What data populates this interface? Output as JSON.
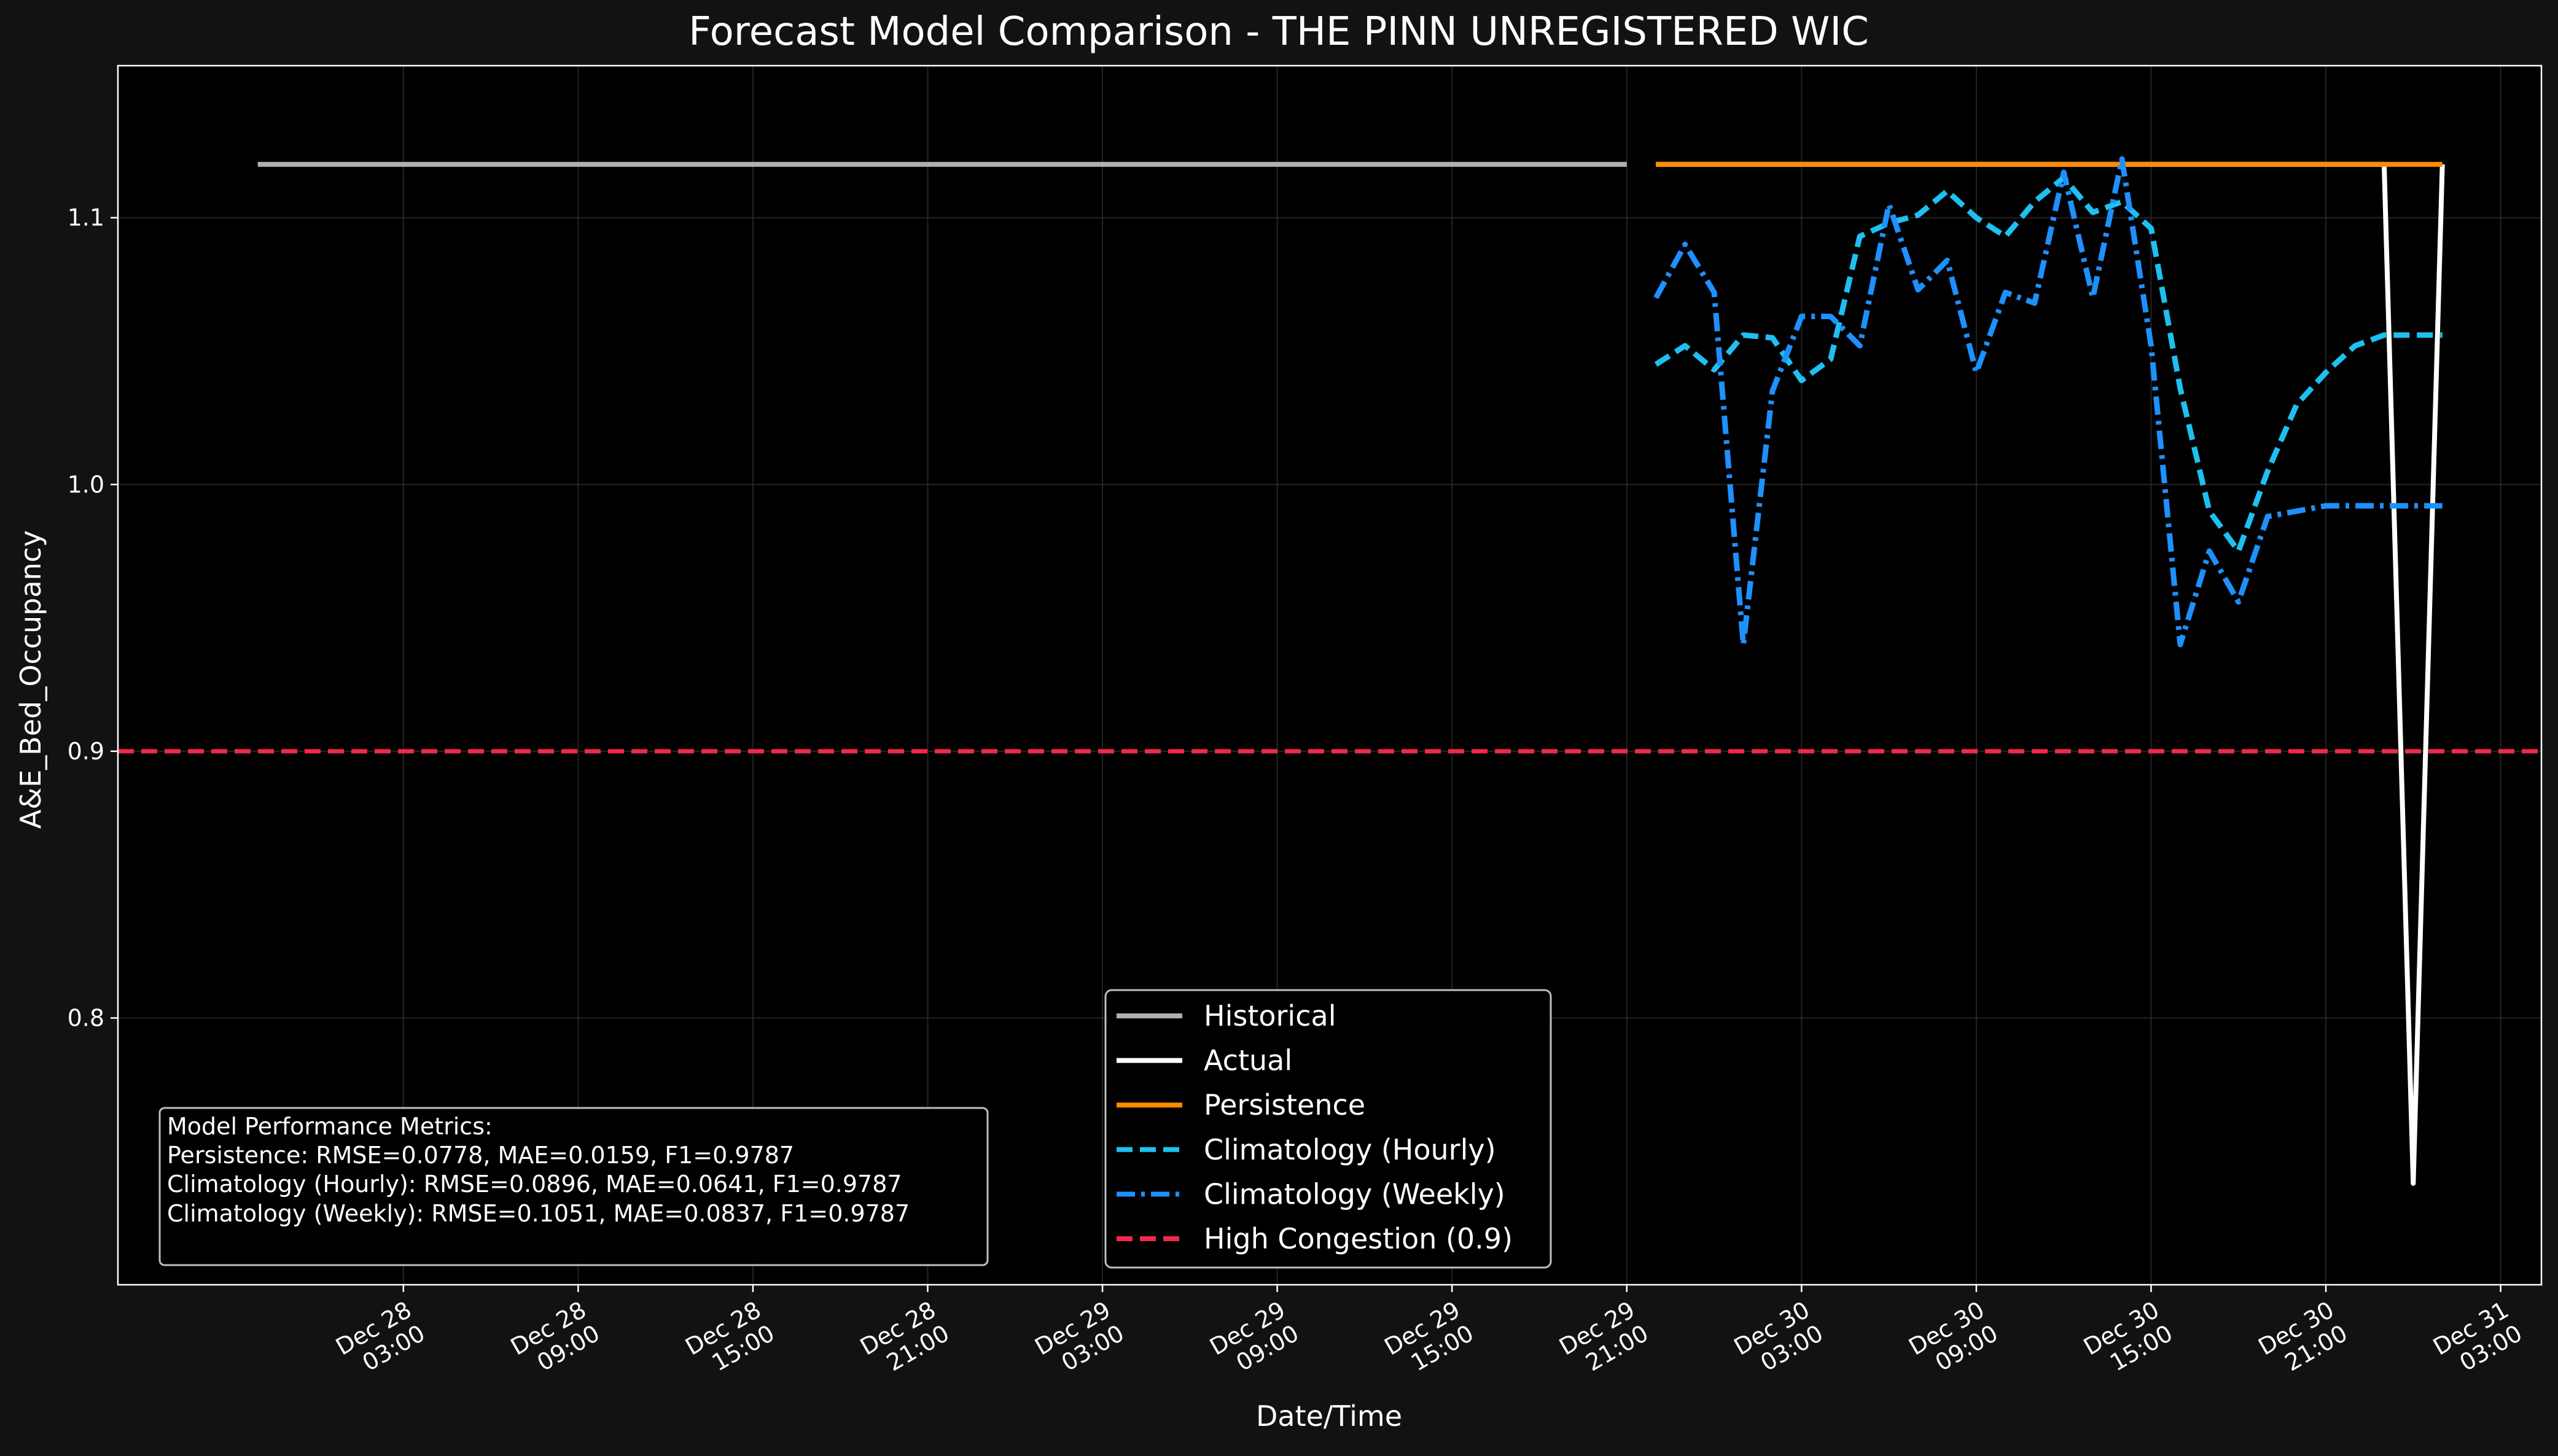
{
  "chart_data": {
    "type": "line",
    "title": "Forecast Model Comparison - THE PINN UNREGISTERED WIC",
    "xlabel": "Date/Time",
    "ylabel": "A&E_Bed_Occupancy",
    "x_axis": "datetime (hours since Dec 28 00:00)",
    "xlim": [
      -6.8,
      76.4
    ],
    "ylim": [
      0.7,
      1.157
    ],
    "grid": true,
    "legend_position": "bottom-center",
    "y_ticks": [
      {
        "value": 0.8,
        "label": "0.8"
      },
      {
        "value": 0.9,
        "label": "0.9"
      },
      {
        "value": 1.0,
        "label": "1.0"
      },
      {
        "value": 1.1,
        "label": "1.1"
      }
    ],
    "x_ticks": [
      {
        "value": 3,
        "line1": "Dec 28",
        "line2": "03:00"
      },
      {
        "value": 9,
        "line1": "Dec 28",
        "line2": "09:00"
      },
      {
        "value": 15,
        "line1": "Dec 28",
        "line2": "15:00"
      },
      {
        "value": 21,
        "line1": "Dec 28",
        "line2": "21:00"
      },
      {
        "value": 27,
        "line1": "Dec 29",
        "line2": "03:00"
      },
      {
        "value": 33,
        "line1": "Dec 29",
        "line2": "09:00"
      },
      {
        "value": 39,
        "line1": "Dec 29",
        "line2": "15:00"
      },
      {
        "value": 45,
        "line1": "Dec 29",
        "line2": "21:00"
      },
      {
        "value": 51,
        "line1": "Dec 30",
        "line2": "03:00"
      },
      {
        "value": 57,
        "line1": "Dec 30",
        "line2": "09:00"
      },
      {
        "value": 63,
        "line1": "Dec 30",
        "line2": "15:00"
      },
      {
        "value": 69,
        "line1": "Dec 30",
        "line2": "21:00"
      },
      {
        "value": 75,
        "line1": "Dec 31",
        "line2": "03:00"
      }
    ],
    "series": [
      {
        "name": "Historical",
        "color": "#b0b0b0",
        "style": "solid",
        "x": [
          -2.0,
          45.0
        ],
        "y": [
          1.12,
          1.12
        ]
      },
      {
        "name": "Actual",
        "color": "#ffffff",
        "style": "solid",
        "x": [
          46.0,
          47.0,
          48.0,
          49.0,
          50.0,
          51.0,
          52.0,
          53.0,
          54.0,
          55.0,
          56.0,
          57.0,
          58.0,
          59.0,
          60.0,
          61.0,
          62.0,
          63.0,
          64.0,
          65.0,
          66.0,
          67.0,
          68.0,
          69.0,
          70.0,
          71.0,
          72.0,
          73.0
        ],
        "y": [
          1.12,
          1.12,
          1.12,
          1.12,
          1.12,
          1.12,
          1.12,
          1.12,
          1.12,
          1.12,
          1.12,
          1.12,
          1.12,
          1.12,
          1.12,
          1.12,
          1.12,
          1.12,
          1.12,
          1.12,
          1.12,
          1.12,
          1.12,
          1.12,
          1.12,
          1.12,
          0.738,
          1.12
        ]
      },
      {
        "name": "Persistence",
        "color": "#ff8c00",
        "style": "solid",
        "x": [
          46.0,
          73.0
        ],
        "y": [
          1.12,
          1.12
        ]
      },
      {
        "name": "Climatology (Hourly)",
        "color": "#1ec0f0",
        "style": "dashed",
        "x": [
          46.0,
          47.0,
          48.0,
          49.0,
          50.0,
          51.0,
          52.0,
          53.0,
          54.0,
          55.0,
          56.0,
          57.0,
          58.0,
          59.0,
          60.0,
          61.0,
          62.0,
          63.0,
          64.0,
          65.0,
          66.0,
          67.0,
          68.0,
          69.0,
          70.0,
          71.0,
          72.0,
          73.0
        ],
        "y": [
          1.045,
          1.052,
          1.043,
          1.056,
          1.055,
          1.039,
          1.047,
          1.093,
          1.098,
          1.101,
          1.11,
          1.1,
          1.093,
          1.106,
          1.115,
          1.102,
          1.106,
          1.096,
          1.036,
          0.99,
          0.975,
          1.005,
          1.03,
          1.042,
          1.052,
          1.056,
          1.056,
          1.056
        ]
      },
      {
        "name": "Climatology (Weekly)",
        "color": "#1e90ff",
        "style": "dashdot",
        "x": [
          46.0,
          47.0,
          48.0,
          49.0,
          50.0,
          51.0,
          52.0,
          53.0,
          54.0,
          55.0,
          56.0,
          57.0,
          58.0,
          59.0,
          60.0,
          61.0,
          62.0,
          63.0,
          64.0,
          65.0,
          66.0,
          67.0,
          68.0,
          69.0,
          70.0,
          71.0,
          72.0,
          73.0
        ],
        "y": [
          1.07,
          1.09,
          1.072,
          0.94,
          1.035,
          1.063,
          1.063,
          1.052,
          1.105,
          1.073,
          1.084,
          1.042,
          1.072,
          1.068,
          1.117,
          1.07,
          1.122,
          1.052,
          0.94,
          0.975,
          0.956,
          0.988,
          0.99,
          0.992,
          0.992,
          0.992,
          0.992,
          0.992
        ]
      }
    ],
    "reference_lines": [
      {
        "name": "High Congestion (0.9)",
        "y": 0.9,
        "color": "#f0284a",
        "style": "dashed"
      }
    ],
    "metrics_box": {
      "heading": "Model Performance Metrics:",
      "lines": [
        "Persistence: RMSE=0.0778, MAE=0.0159, F1=0.9787",
        "Climatology (Hourly): RMSE=0.0896, MAE=0.0641, F1=0.9787",
        "Climatology (Weekly): RMSE=0.1051, MAE=0.0837, F1=0.9787"
      ]
    },
    "legend": [
      {
        "label": "Historical",
        "color": "#b0b0b0",
        "style": "solid"
      },
      {
        "label": "Actual",
        "color": "#ffffff",
        "style": "solid"
      },
      {
        "label": "Persistence",
        "color": "#ff8c00",
        "style": "solid"
      },
      {
        "label": "Climatology (Hourly)",
        "color": "#1ec0f0",
        "style": "dashed"
      },
      {
        "label": "Climatology (Weekly)",
        "color": "#1e90ff",
        "style": "dashdot"
      },
      {
        "label": "High Congestion (0.9)",
        "color": "#f0284a",
        "style": "dashed"
      }
    ],
    "colors": {
      "figure_background": "#121212",
      "plot_background": "#000000",
      "axes": "#ffffff",
      "grid": "#333333",
      "text": "#ffffff"
    }
  }
}
